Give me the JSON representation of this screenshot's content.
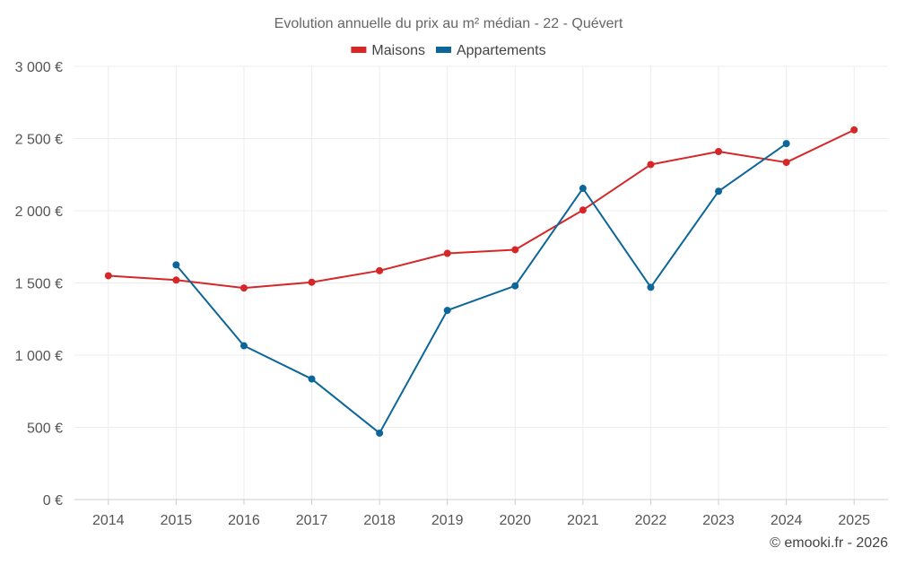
{
  "chart_data": {
    "type": "line",
    "title": "Evolution annuelle du prix au m² médian - 22 - Quévert",
    "x": [
      "2014",
      "2015",
      "2016",
      "2017",
      "2018",
      "2019",
      "2020",
      "2021",
      "2022",
      "2023",
      "2024",
      "2025"
    ],
    "y_ticks": [
      0,
      500,
      1000,
      1500,
      2000,
      2500,
      3000
    ],
    "y_tick_labels": [
      "0 €",
      "500 €",
      "1 000 €",
      "1 500 €",
      "2 000 €",
      "2 500 €",
      "3 000 €"
    ],
    "ylim": [
      0,
      3000
    ],
    "grid": true,
    "legend_position": "top-center",
    "series": [
      {
        "name": "Maisons",
        "color": "#d62728",
        "values": [
          1550,
          1520,
          1465,
          1505,
          1585,
          1705,
          1730,
          2005,
          2320,
          2410,
          2335,
          2560
        ]
      },
      {
        "name": "Appartements",
        "color": "#0d6699",
        "values": [
          null,
          1625,
          1065,
          835,
          460,
          1310,
          1480,
          2155,
          1470,
          2135,
          2465,
          null
        ]
      }
    ],
    "credit": "© emooki.fr - 2026"
  }
}
